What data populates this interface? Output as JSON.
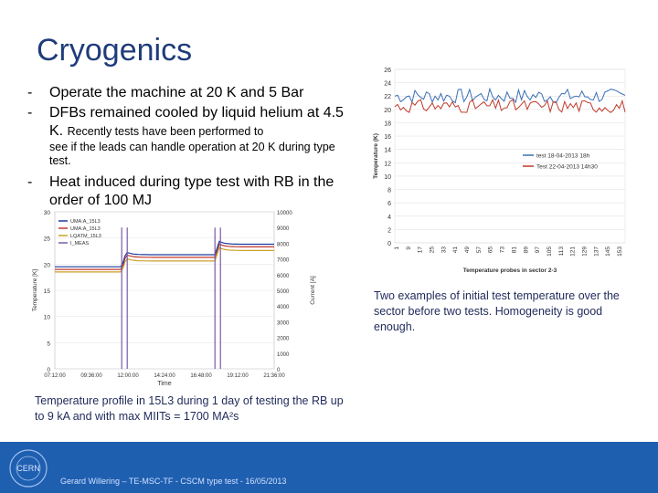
{
  "slide": {
    "title": "Cryogenics",
    "bullets": {
      "b1": "Operate the machine at 20 K and 5 Bar",
      "b2_main": "DFBs remained cooled by liquid helium at 4.5 K.",
      "b2_tail": "Recently tests have been performed to",
      "b2_sub": "see if the leads can handle operation at 20 K during type test.",
      "b3": "Heat induced during type test with RB in the order of 100 MJ"
    },
    "caption_left": "Temperature profile in 15L3 during 1 day of testing the RB up to 9 kA and with max MIITs = 1700 MA²s",
    "caption_right": "Two examples of initial test temperature over the sector before two tests. Homogeneity is good enough.",
    "footer": "Gerard Willering – TE-MSC-TF - CSCM type test - 16/05/2013",
    "logo_text": "CERN"
  },
  "chart_data": [
    {
      "type": "line",
      "xlabel": "Time",
      "ylabel": "Temperature [K]",
      "ylabel_right": "Current [A]",
      "x_ticks": [
        "07:12:00",
        "09:36:00",
        "12:00:00",
        "14:24:00",
        "16:48:00",
        "19:12:00",
        "21:36:00"
      ],
      "y_ticks": [
        0,
        5,
        10,
        15,
        20,
        25,
        30
      ],
      "y_right_ticks": [
        0,
        1000,
        2000,
        3000,
        4000,
        5000,
        6000,
        7000,
        8000,
        9000,
        10000
      ],
      "ylim": [
        0,
        30
      ],
      "ylim_right": [
        0,
        10000
      ],
      "legend": "top-left",
      "series": [
        {
          "name": "UMA:A_15L3",
          "color": "#1f3c9c"
        },
        {
          "name": "UMA:A_15L3",
          "color": "#c0392b"
        },
        {
          "name": "LQATM_15L3",
          "color": "#c9a227"
        },
        {
          "name": "I_MEAS",
          "color": "#7a5aa8"
        }
      ]
    },
    {
      "type": "line",
      "xlabel": "Temperature probes in sector 2-3",
      "ylabel": "Temperature (K)",
      "ylim": [
        0,
        26
      ],
      "y_ticks": [
        0,
        2,
        4,
        6,
        8,
        10,
        12,
        14,
        16,
        18,
        20,
        22,
        24,
        26
      ],
      "x_ticks": [
        "1",
        "9",
        "17",
        "25",
        "33",
        "41",
        "49",
        "57",
        "65",
        "73",
        "81",
        "89",
        "97",
        "105",
        "113",
        "121",
        "129",
        "137",
        "145",
        "153"
      ],
      "legend": "right",
      "series": [
        {
          "name": "test 18-04-2013 18h",
          "color": "#3b6fb6",
          "mean": 22
        },
        {
          "name": "Test 22-04-2013 14h30",
          "color": "#c0392b",
          "mean": 20.5
        }
      ]
    }
  ]
}
